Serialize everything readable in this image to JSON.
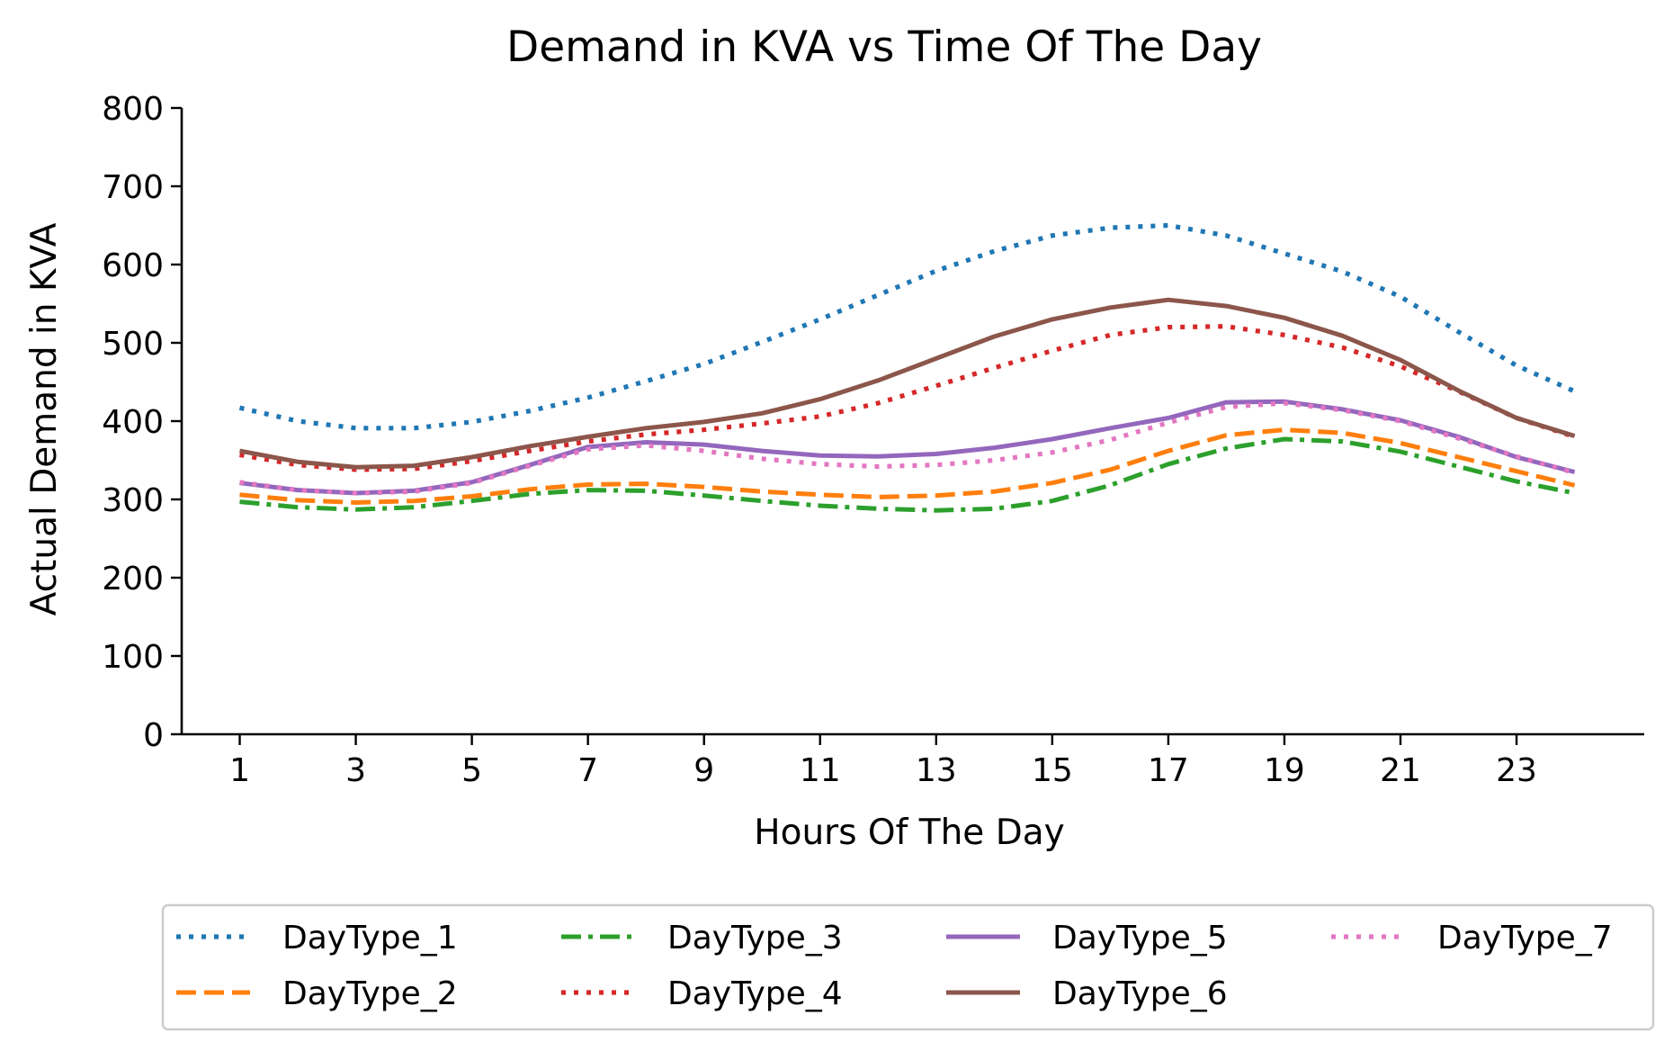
{
  "chart_data": {
    "type": "line",
    "title": "Demand in KVA vs Time Of The Day",
    "xlabel": "Hours Of The Day",
    "ylabel": "Actual Demand in KVA",
    "xlim": [
      0,
      25.2
    ],
    "ylim": [
      0,
      800
    ],
    "x_ticks": [
      1,
      3,
      5,
      7,
      9,
      11,
      13,
      15,
      17,
      19,
      21,
      23
    ],
    "y_ticks": [
      0,
      100,
      200,
      300,
      400,
      500,
      600,
      700,
      800
    ],
    "grid": false,
    "legend": {
      "position": "bottom",
      "columns": 4
    },
    "x": [
      1,
      2,
      3,
      4,
      5,
      6,
      7,
      8,
      9,
      10,
      11,
      12,
      13,
      14,
      15,
      16,
      17,
      18,
      19,
      20,
      21,
      22,
      23,
      24
    ],
    "series": [
      {
        "name": "DayType_1",
        "color": "#1f77b4",
        "dash": "dotted",
        "values": [
          417,
          400,
          391,
          391,
          399,
          413,
          430,
          451,
          473,
          501,
          530,
          561,
          592,
          617,
          637,
          647,
          650,
          637,
          614,
          591,
          559,
          514,
          471,
          438
        ]
      },
      {
        "name": "DayType_2",
        "color": "#ff7f0e",
        "dash": "dashed",
        "values": [
          306,
          299,
          296,
          298,
          304,
          313,
          319,
          320,
          316,
          310,
          306,
          303,
          305,
          310,
          321,
          338,
          362,
          382,
          389,
          385,
          372,
          354,
          336,
          318
        ]
      },
      {
        "name": "DayType_3",
        "color": "#2ca02c",
        "dash": "dashdot",
        "values": [
          297,
          290,
          287,
          290,
          298,
          307,
          312,
          311,
          305,
          298,
          292,
          288,
          286,
          288,
          298,
          318,
          345,
          365,
          377,
          374,
          361,
          342,
          323,
          308
        ]
      },
      {
        "name": "DayType_4",
        "color": "#d62728",
        "dash": "dotted",
        "values": [
          357,
          344,
          338,
          339,
          349,
          362,
          374,
          383,
          389,
          397,
          406,
          423,
          445,
          468,
          490,
          510,
          520,
          521,
          510,
          494,
          470,
          438,
          404,
          380
        ]
      },
      {
        "name": "DayType_5",
        "color": "#9467bd",
        "dash": "solid",
        "values": [
          321,
          312,
          308,
          311,
          322,
          344,
          367,
          373,
          370,
          362,
          356,
          355,
          358,
          366,
          377,
          391,
          404,
          424,
          425,
          415,
          401,
          380,
          354,
          335
        ]
      },
      {
        "name": "DayType_6",
        "color": "#8c564b",
        "dash": "solid",
        "values": [
          362,
          348,
          341,
          343,
          354,
          368,
          380,
          391,
          399,
          410,
          428,
          452,
          480,
          508,
          530,
          545,
          555,
          547,
          532,
          509,
          478,
          439,
          404,
          381
        ]
      },
      {
        "name": "DayType_7",
        "color": "#e377c2",
        "dash": "dotted",
        "values": [
          322,
          312,
          308,
          310,
          321,
          343,
          364,
          369,
          362,
          352,
          345,
          342,
          344,
          350,
          360,
          376,
          398,
          418,
          423,
          414,
          400,
          378,
          355,
          334
        ]
      }
    ]
  }
}
